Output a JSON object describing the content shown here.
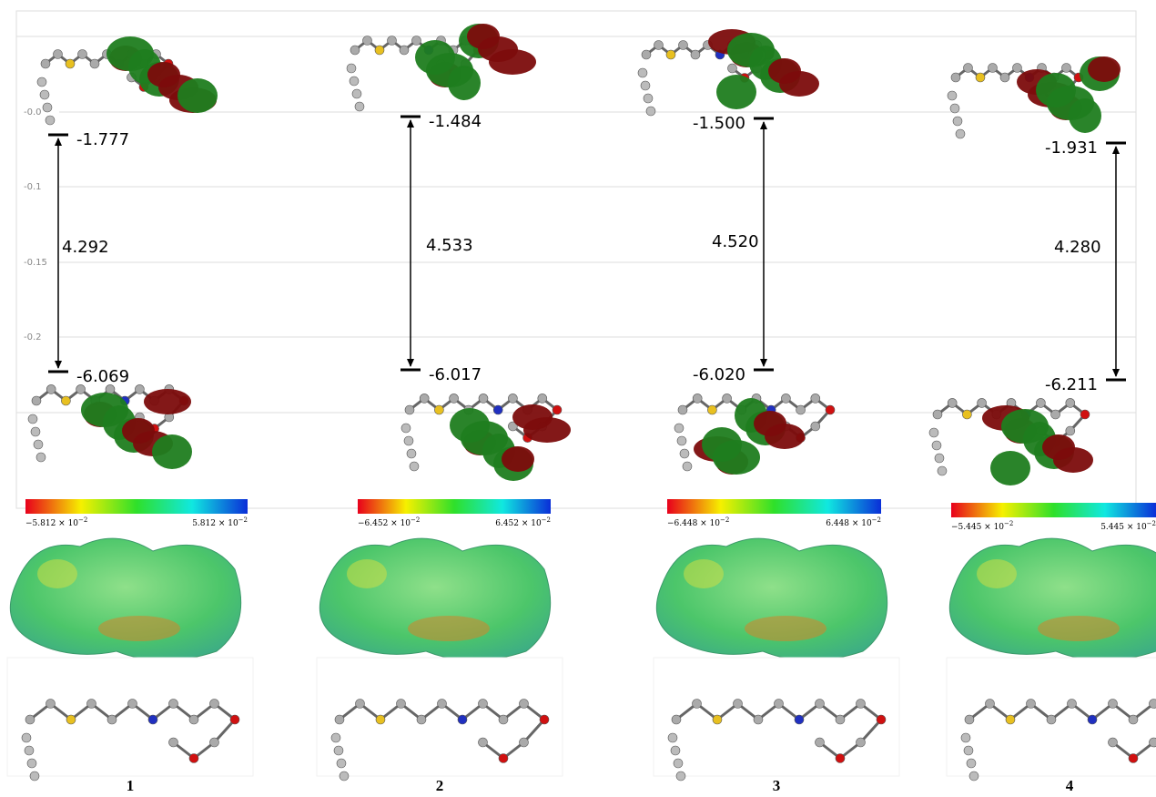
{
  "axis": {
    "ticks": [
      "-0.0",
      "-0.1",
      "-0.15",
      "-0.2"
    ]
  },
  "compounds": [
    {
      "label": "1",
      "lumo": "-1.777",
      "homo": "-6.069",
      "gap": "4.292",
      "colorbar": {
        "min": "−5.812 × 10",
        "max": "5.812 × 10",
        "exp": "−2"
      }
    },
    {
      "label": "2",
      "lumo": "-1.484",
      "homo": "-6.017",
      "gap": "4.533",
      "colorbar": {
        "min": "−6.452 × 10",
        "max": "6.452 × 10",
        "exp": "−2"
      }
    },
    {
      "label": "3",
      "lumo": "-1.500",
      "homo": "-6.020",
      "gap": "4.520",
      "colorbar": {
        "min": "−6.448 × 10",
        "max": "6.448 × 10",
        "exp": "−2"
      }
    },
    {
      "label": "4",
      "lumo": "-1.931",
      "homo": "-6.211",
      "gap": "4.280",
      "colorbar": {
        "min": "−5.445 × 10",
        "max": "5.445 × 10",
        "exp": "−2"
      }
    }
  ]
}
